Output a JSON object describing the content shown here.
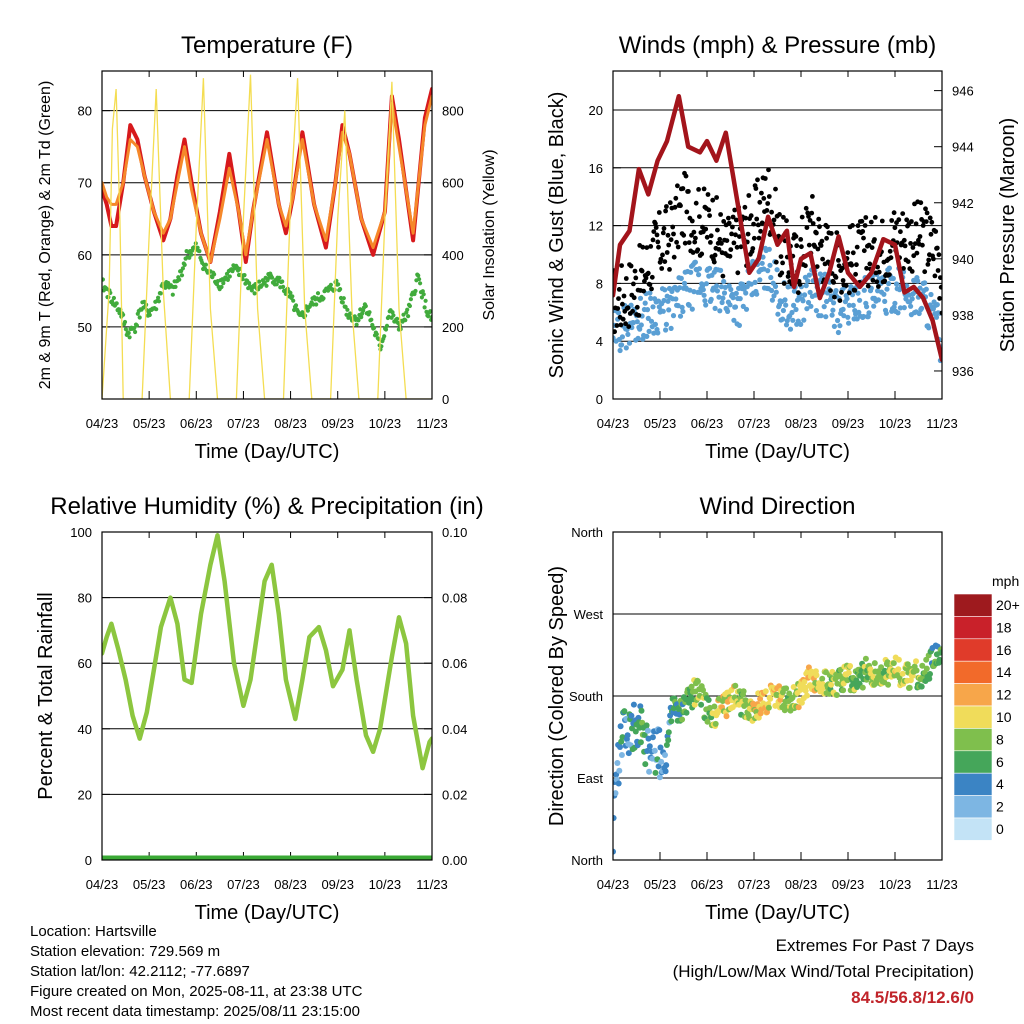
{
  "colors": {
    "temp_2m": "#d7191c",
    "temp_9m": "#f5882a",
    "dewpoint": "#41ab3c",
    "solar": "#f4dd52",
    "wind": "#5a9fd4",
    "gust": "#000000",
    "pressure": "#a3141b",
    "rh": "#8cc63f",
    "precip": "#3aa935"
  },
  "chart_data": [
    {
      "id": "temperature",
      "type": "line",
      "title": "Temperature (F)",
      "xlabel": "Time (Day/UTC)",
      "ylabel_left": "2m & 9m T (Red, Orange) & 2m Td (Green)",
      "ylabel_right": "Solar Insolation (Yellow)",
      "x_ticks": [
        "04/23",
        "05/23",
        "06/23",
        "07/23",
        "08/23",
        "09/23",
        "10/23",
        "11/23"
      ],
      "xlim": [
        0,
        7
      ],
      "ylim_left": [
        40,
        85.5
      ],
      "y_ticks_left": [
        50,
        60,
        70,
        80
      ],
      "ylim_right": [
        0,
        910
      ],
      "y_ticks_right": [
        0,
        200,
        400,
        600,
        800
      ],
      "grid": true,
      "series": [
        {
          "key": "t2m",
          "color_key": "temp_2m",
          "x": [
            0,
            0.1,
            0.2,
            0.3,
            0.45,
            0.6,
            0.75,
            0.9,
            1.1,
            1.3,
            1.45,
            1.6,
            1.75,
            1.9,
            2.1,
            2.3,
            2.5,
            2.7,
            2.9,
            3.05,
            3.2,
            3.5,
            3.75,
            3.9,
            4.05,
            4.25,
            4.5,
            4.75,
            4.95,
            5.1,
            5.25,
            5.5,
            5.75,
            6.0,
            6.15,
            6.3,
            6.6,
            6.85,
            7.0
          ],
          "y": [
            69,
            67,
            64,
            64,
            70,
            78,
            76,
            71,
            66,
            62,
            65,
            71,
            76,
            70,
            63,
            59,
            66,
            74,
            66,
            59,
            66,
            77,
            67,
            63,
            68,
            77,
            67,
            61,
            70,
            78,
            74,
            65,
            60,
            66,
            82,
            76,
            62,
            79,
            83
          ]
        },
        {
          "key": "t9m",
          "color_key": "temp_9m",
          "x": [
            0,
            0.1,
            0.2,
            0.3,
            0.45,
            0.6,
            0.75,
            0.9,
            1.1,
            1.3,
            1.45,
            1.6,
            1.75,
            1.9,
            2.1,
            2.3,
            2.5,
            2.7,
            2.9,
            3.05,
            3.2,
            3.5,
            3.75,
            3.9,
            4.05,
            4.25,
            4.5,
            4.75,
            4.95,
            5.1,
            5.25,
            5.5,
            5.75,
            6.0,
            6.15,
            6.3,
            6.6,
            6.85,
            7.0
          ],
          "y": [
            70,
            68,
            67,
            67,
            70,
            76,
            75,
            71,
            66,
            63,
            65,
            70,
            75,
            69,
            63,
            59,
            65,
            72,
            66,
            60,
            66,
            76,
            67,
            64,
            68,
            76,
            67,
            62,
            70,
            77,
            74,
            65,
            61,
            66,
            81,
            75,
            63,
            78,
            82
          ]
        },
        {
          "key": "td",
          "color_key": "dewpoint",
          "x": [
            0,
            0.2,
            0.4,
            0.55,
            0.7,
            0.85,
            1.0,
            1.15,
            1.3,
            1.5,
            1.65,
            1.8,
            2.0,
            2.2,
            2.5,
            2.8,
            3.0,
            3.2,
            3.4,
            3.6,
            3.8,
            4.0,
            4.2,
            4.4,
            4.6,
            4.8,
            5.0,
            5.2,
            5.4,
            5.6,
            5.75,
            5.9,
            6.1,
            6.3,
            6.5,
            6.7,
            6.9,
            7.0
          ],
          "y": [
            56,
            54,
            52,
            49,
            50,
            53,
            52,
            53,
            56,
            55,
            57,
            60,
            61,
            58,
            56,
            58,
            57,
            55,
            56,
            57,
            56,
            54,
            51,
            53,
            54,
            55,
            56,
            52,
            51,
            53,
            50,
            47,
            52,
            50,
            52,
            57,
            52,
            51
          ]
        },
        {
          "key": "solar",
          "color_key": "solar",
          "axis": "right",
          "x": [
            0,
            0.15,
            0.22,
            0.3,
            0.38,
            0.45,
            0.6,
            0.85,
            1.0,
            1.15,
            1.3,
            1.45,
            1.6,
            1.85,
            2.0,
            2.15,
            2.3,
            2.45,
            2.6,
            2.85,
            3.0,
            3.15,
            3.3,
            3.45,
            3.6,
            3.85,
            4.0,
            4.15,
            4.3,
            4.45,
            4.6,
            4.85,
            5.0,
            5.15,
            5.3,
            5.45,
            5.6,
            5.85,
            6.0,
            6.15,
            6.3,
            6.45,
            6.6,
            6.85,
            7.0
          ],
          "y": [
            0,
            300,
            750,
            860,
            500,
            0,
            0,
            0,
            450,
            860,
            300,
            0,
            0,
            0,
            480,
            890,
            250,
            0,
            0,
            0,
            500,
            900,
            250,
            0,
            0,
            0,
            550,
            890,
            250,
            0,
            0,
            0,
            500,
            800,
            250,
            0,
            0,
            0,
            500,
            880,
            250,
            0,
            0,
            0,
            0
          ]
        }
      ]
    },
    {
      "id": "winds",
      "type": "line",
      "title": "Winds (mph) & Pressure (mb)",
      "xlabel": "Time (Day/UTC)",
      "ylabel_left": "Sonic Wind & Gust (Blue, Black)",
      "ylabel_right": "Station Pressure (Maroon)",
      "x_ticks": [
        "04/23",
        "05/23",
        "06/23",
        "07/23",
        "08/23",
        "09/23",
        "10/23",
        "11/23"
      ],
      "xlim": [
        0,
        7
      ],
      "ylim_left": [
        0,
        22.7
      ],
      "y_ticks_left": [
        0,
        4,
        8,
        12,
        16,
        20
      ],
      "ylim_right": [
        935,
        946.7
      ],
      "y_ticks_right": [
        936,
        938,
        940,
        942,
        944,
        946
      ],
      "grid": true,
      "series": [
        {
          "key": "wind",
          "color_key": "wind",
          "x": [
            0,
            0.3,
            0.6,
            0.9,
            1.2,
            1.5,
            1.8,
            2.1,
            2.4,
            2.7,
            3.0,
            3.3,
            3.6,
            3.9,
            4.2,
            4.5,
            4.8,
            5.1,
            5.4,
            5.7,
            6.0,
            6.3,
            6.6,
            6.9,
            7.0
          ],
          "y": [
            4.5,
            5,
            5.5,
            6,
            6,
            7,
            8,
            7.5,
            7,
            6.5,
            8,
            9,
            6.5,
            6,
            7.5,
            7,
            6,
            6.5,
            7,
            7,
            7.5,
            7,
            7,
            5,
            3.5
          ]
        },
        {
          "key": "gust",
          "color_key": "gust",
          "x": [
            0,
            0.3,
            0.6,
            0.9,
            1.2,
            1.5,
            1.8,
            2.1,
            2.4,
            2.7,
            3.0,
            3.3,
            3.6,
            3.9,
            4.2,
            4.5,
            4.8,
            5.1,
            5.4,
            5.7,
            6.0,
            6.3,
            6.6,
            6.9,
            7.0
          ],
          "y": [
            6.5,
            7,
            8,
            10,
            11,
            13,
            12,
            12,
            10,
            11,
            12,
            14,
            10,
            9,
            12,
            10,
            9,
            9.5,
            10,
            10,
            11,
            11,
            11,
            10,
            8
          ]
        },
        {
          "key": "pressure",
          "color_key": "pressure",
          "axis": "right",
          "x": [
            0,
            0.15,
            0.35,
            0.55,
            0.75,
            0.95,
            1.15,
            1.4,
            1.6,
            1.85,
            2.0,
            2.2,
            2.4,
            2.55,
            2.7,
            2.9,
            3.1,
            3.3,
            3.5,
            3.7,
            3.85,
            4.0,
            4.2,
            4.4,
            4.6,
            4.8,
            5.0,
            5.25,
            5.5,
            5.75,
            6.0,
            6.2,
            6.4,
            6.6,
            6.8,
            7.0
          ],
          "y": [
            938.7,
            940.5,
            941,
            943.2,
            942.3,
            943.5,
            944.2,
            945.8,
            944,
            943.8,
            944.2,
            943.5,
            944.5,
            943,
            941.5,
            939.5,
            940,
            941.5,
            940.5,
            941,
            939,
            940,
            940.2,
            938.6,
            939.5,
            940.8,
            939.5,
            939,
            939.5,
            940.7,
            940.5,
            938.8,
            939,
            938.6,
            937.8,
            936.4
          ]
        }
      ]
    },
    {
      "id": "humidity",
      "type": "line",
      "title": "Relative Humidity (%) & Precipitation (in)",
      "xlabel": "Time (Day/UTC)",
      "ylabel_left": "Percent & Total Rainfall",
      "x_ticks": [
        "04/23",
        "05/23",
        "06/23",
        "07/23",
        "08/23",
        "09/23",
        "10/23",
        "11/23"
      ],
      "xlim": [
        0,
        7
      ],
      "ylim_left": [
        0,
        100
      ],
      "y_ticks_left": [
        0,
        20,
        40,
        60,
        80,
        100
      ],
      "ylim_right": [
        0,
        0.1
      ],
      "y_ticks_right": [
        "0.00",
        "0.02",
        "0.04",
        "0.06",
        "0.08",
        "0.10"
      ],
      "grid": true,
      "series": [
        {
          "key": "rh",
          "color_key": "rh",
          "x": [
            0,
            0.1,
            0.2,
            0.35,
            0.5,
            0.65,
            0.8,
            0.95,
            1.1,
            1.25,
            1.45,
            1.6,
            1.75,
            1.9,
            2.1,
            2.3,
            2.45,
            2.6,
            2.8,
            3.0,
            3.15,
            3.3,
            3.45,
            3.6,
            3.75,
            3.9,
            4.1,
            4.25,
            4.4,
            4.6,
            4.75,
            4.9,
            5.1,
            5.25,
            5.4,
            5.6,
            5.75,
            5.9,
            6.15,
            6.3,
            6.45,
            6.6,
            6.8,
            6.95,
            7.0
          ],
          "y": [
            63,
            68,
            72,
            64,
            55,
            44,
            37,
            45,
            58,
            71,
            80,
            72,
            55,
            54,
            75,
            90,
            99,
            85,
            60,
            47,
            55,
            70,
            85,
            90,
            75,
            55,
            43,
            55,
            68,
            71,
            64,
            53,
            58,
            70,
            55,
            38,
            33,
            40,
            62,
            74,
            66,
            44,
            28,
            36,
            37
          ]
        },
        {
          "key": "precip",
          "color_key": "precip",
          "axis": "right",
          "x": [
            0,
            7
          ],
          "y": [
            0,
            0
          ]
        }
      ]
    },
    {
      "id": "direction",
      "type": "scatter",
      "title": "Wind Direction",
      "xlabel": "Time (Day/UTC)",
      "ylabel_left": "Direction (Colored By Speed)",
      "x_ticks": [
        "04/23",
        "05/23",
        "06/23",
        "07/23",
        "08/23",
        "09/23",
        "10/23",
        "11/23"
      ],
      "xlim": [
        0,
        7
      ],
      "ylim_left": [
        0,
        360
      ],
      "y_ticks_left": [
        "North",
        "East",
        "South",
        "West",
        "North"
      ],
      "grid": true,
      "direction_track": {
        "x": [
          0,
          0.1,
          0.2,
          0.35,
          0.5,
          0.65,
          0.8,
          0.95,
          1.1,
          1.25,
          1.4,
          1.6,
          1.8,
          2.0,
          2.2,
          2.4,
          2.6,
          2.8,
          3.0,
          3.2,
          3.4,
          3.6,
          3.8,
          4.0,
          4.2,
          4.4,
          4.6,
          4.8,
          5.0,
          5.2,
          5.4,
          5.6,
          5.8,
          6.0,
          6.2,
          6.4,
          6.6,
          6.8,
          7.0
        ],
        "y": [
          30,
          100,
          140,
          145,
          150,
          135,
          110,
          120,
          100,
          170,
          155,
          180,
          185,
          165,
          160,
          170,
          180,
          170,
          165,
          175,
          180,
          180,
          175,
          185,
          200,
          200,
          190,
          195,
          200,
          195,
          210,
          200,
          205,
          210,
          200,
          205,
          200,
          220,
          230
        ]
      },
      "speed_track": [
        4,
        3,
        4,
        4,
        5,
        6,
        3,
        4,
        3,
        5,
        6,
        7,
        8,
        7,
        9,
        10,
        9,
        8,
        10,
        11,
        10,
        9,
        8,
        10,
        11,
        9,
        8,
        8,
        9,
        7,
        8,
        9,
        8,
        10,
        9,
        8,
        7,
        6,
        7
      ],
      "legend": {
        "title": "mph",
        "labels": [
          "20+",
          "18",
          "16",
          "14",
          "12",
          "10",
          "8",
          "6",
          "4",
          "2",
          "0"
        ],
        "colors": [
          "#9e1a1e",
          "#c9212a",
          "#e03b2a",
          "#f26a2a",
          "#f7a64a",
          "#f0dc5a",
          "#7fbf4d",
          "#45a65a",
          "#3b84c4",
          "#7db6e3",
          "#c3e3f6"
        ],
        "placement": "right"
      }
    }
  ],
  "info": {
    "location": "Location: Hartsville",
    "elevation": "Station elevation: 729.569 m",
    "latlon": "Station lat/lon: 42.2112; -77.6897",
    "created": "Figure created on Mon, 2025-08-11, at 23:38 UTC",
    "recent": "Most recent data timestamp: 2025/08/11 23:15:00"
  },
  "extremes": {
    "line1": "Extremes For Past 7 Days",
    "line2": "(High/Low/Max Wind/Total Precipitation)",
    "value": "84.5/56.8/12.6/0"
  }
}
